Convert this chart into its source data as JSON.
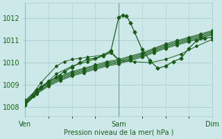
{
  "background_color": "#cce8e8",
  "grid_color": "#aacccc",
  "line_color": "#1a5c1a",
  "xlabel": "Pression niveau de la mer( hPa )",
  "yticks": [
    1008,
    1009,
    1010,
    1011,
    1012
  ],
  "ylim": [
    1007.6,
    1012.7
  ],
  "xlim": [
    0,
    48
  ],
  "xtick_positions": [
    0,
    24,
    48
  ],
  "xtick_labels": [
    "Ven",
    "Sam",
    "Dim"
  ],
  "vlines": [
    0,
    24,
    48
  ],
  "series": [
    {
      "x": [
        0,
        3,
        6,
        9,
        12,
        15,
        18,
        21,
        24,
        27,
        30,
        33,
        36,
        39,
        42,
        45,
        48
      ],
      "y": [
        1008.1,
        1008.6,
        1008.95,
        1009.2,
        1009.4,
        1009.55,
        1009.7,
        1009.85,
        1009.95,
        1010.1,
        1010.25,
        1010.45,
        1010.65,
        1010.8,
        1010.95,
        1011.1,
        1011.25
      ]
    },
    {
      "x": [
        0,
        3,
        6,
        9,
        12,
        15,
        18,
        21,
        24,
        27,
        30,
        33,
        36,
        39,
        42,
        45,
        48
      ],
      "y": [
        1008.15,
        1008.65,
        1009.0,
        1009.25,
        1009.45,
        1009.6,
        1009.75,
        1009.9,
        1010.0,
        1010.15,
        1010.3,
        1010.5,
        1010.7,
        1010.85,
        1011.0,
        1011.15,
        1011.3
      ]
    },
    {
      "x": [
        0,
        3,
        6,
        9,
        12,
        15,
        18,
        21,
        24,
        27,
        30,
        33,
        36,
        39,
        42,
        45,
        48
      ],
      "y": [
        1008.2,
        1008.7,
        1009.05,
        1009.3,
        1009.5,
        1009.65,
        1009.8,
        1009.95,
        1010.05,
        1010.2,
        1010.35,
        1010.55,
        1010.75,
        1010.9,
        1011.05,
        1011.2,
        1011.35
      ]
    },
    {
      "x": [
        0,
        3,
        6,
        9,
        12,
        15,
        18,
        21,
        24,
        27,
        30,
        33,
        36,
        39,
        42,
        45,
        48
      ],
      "y": [
        1008.25,
        1008.75,
        1009.1,
        1009.35,
        1009.55,
        1009.7,
        1009.85,
        1010.0,
        1010.1,
        1010.25,
        1010.4,
        1010.6,
        1010.8,
        1010.95,
        1011.1,
        1011.25,
        1011.4
      ]
    },
    {
      "x": [
        0,
        3,
        6,
        9,
        12,
        15,
        18,
        21,
        24,
        27,
        30,
        33,
        36,
        39,
        42,
        45,
        48
      ],
      "y": [
        1008.3,
        1008.8,
        1009.15,
        1009.4,
        1009.6,
        1009.75,
        1009.9,
        1010.05,
        1010.15,
        1010.3,
        1010.45,
        1010.65,
        1010.85,
        1011.0,
        1011.15,
        1011.3,
        1011.45
      ]
    }
  ],
  "spike_series": {
    "x": [
      0,
      2,
      4,
      6,
      8,
      10,
      12,
      14,
      16,
      18,
      20,
      22,
      24,
      25,
      26,
      27,
      28,
      30,
      32,
      34,
      36,
      38,
      40,
      42,
      44,
      46,
      48
    ],
    "y": [
      1008.1,
      1008.5,
      1008.9,
      1009.15,
      1009.35,
      1009.6,
      1009.8,
      1010.0,
      1010.15,
      1010.2,
      1010.35,
      1010.55,
      1012.05,
      1012.15,
      1012.1,
      1011.8,
      1011.4,
      1010.6,
      1010.1,
      1009.75,
      1009.85,
      1010.05,
      1010.2,
      1010.65,
      1011.0,
      1011.1,
      1011.15
    ]
  },
  "extra_lines": [
    {
      "x": [
        0,
        4,
        8,
        12,
        16,
        20,
        22,
        24
      ],
      "y": [
        1008.1,
        1008.85,
        1009.5,
        1009.85,
        1010.05,
        1010.3,
        1010.45,
        1010.1
      ]
    },
    {
      "x": [
        24,
        28,
        32,
        36,
        40,
        44,
        48
      ],
      "y": [
        1010.1,
        1010.05,
        1010.0,
        1010.15,
        1010.4,
        1010.75,
        1011.05
      ]
    },
    {
      "x": [
        0,
        4,
        8,
        10,
        12,
        14,
        16,
        20,
        22,
        24
      ],
      "y": [
        1008.15,
        1009.1,
        1009.85,
        1010.05,
        1010.15,
        1010.2,
        1010.25,
        1010.35,
        1010.5,
        1010.15
      ]
    }
  ]
}
